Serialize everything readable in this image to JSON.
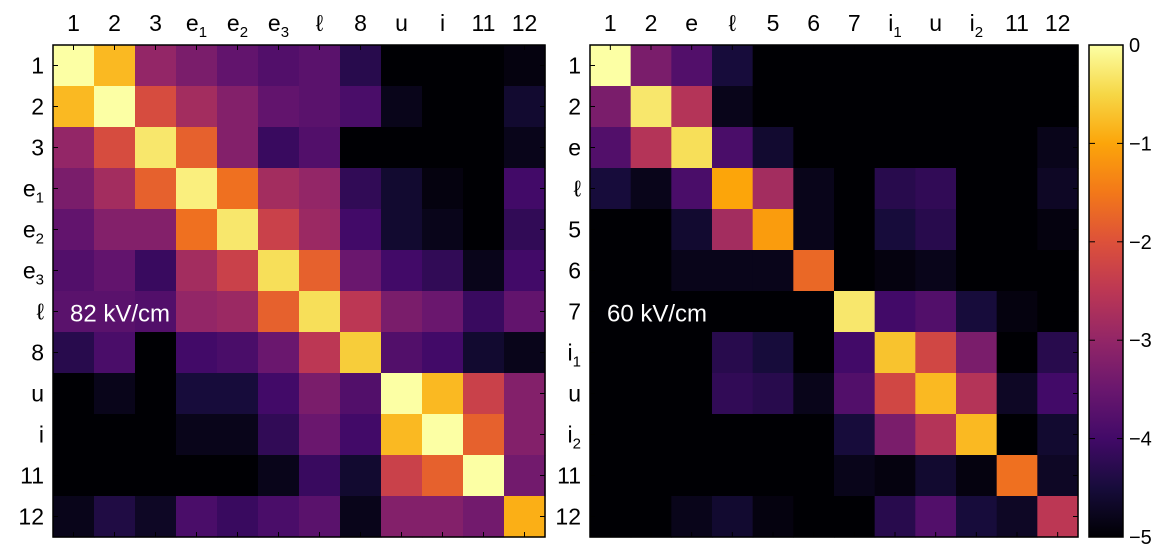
{
  "chart_data": [
    {
      "type": "heatmap",
      "annotation": "82 kV/cm",
      "labels": [
        {
          "base": "1",
          "sub": ""
        },
        {
          "base": "2",
          "sub": ""
        },
        {
          "base": "3",
          "sub": ""
        },
        {
          "base": "e",
          "sub": "1"
        },
        {
          "base": "e",
          "sub": "2"
        },
        {
          "base": "e",
          "sub": "3"
        },
        {
          "base": "ℓ",
          "sub": ""
        },
        {
          "base": "8",
          "sub": ""
        },
        {
          "base": "u",
          "sub": ""
        },
        {
          "base": "i",
          "sub": ""
        },
        {
          "base": "11",
          "sub": ""
        },
        {
          "base": "12",
          "sub": ""
        }
      ],
      "values": [
        [
          0.0,
          -0.8,
          -3.0,
          -3.3,
          -3.6,
          -3.8,
          -3.7,
          -4.3,
          -5.0,
          -5.0,
          -5.0,
          -4.9
        ],
        [
          -0.8,
          0.0,
          -2.1,
          -2.8,
          -3.2,
          -3.6,
          -3.7,
          -3.9,
          -4.8,
          -5.0,
          -5.0,
          -4.6
        ],
        [
          -3.0,
          -2.1,
          -0.3,
          -1.8,
          -3.2,
          -4.1,
          -3.8,
          -5.0,
          -5.0,
          -5.0,
          -5.0,
          -4.8
        ],
        [
          -3.3,
          -2.8,
          -1.8,
          -0.2,
          -1.6,
          -2.8,
          -3.0,
          -4.2,
          -4.6,
          -4.9,
          -5.0,
          -4.0
        ],
        [
          -3.6,
          -3.2,
          -3.2,
          -1.6,
          -0.3,
          -2.3,
          -2.9,
          -4.0,
          -4.6,
          -4.8,
          -5.0,
          -4.2
        ],
        [
          -3.8,
          -3.6,
          -4.1,
          -2.8,
          -2.3,
          -0.4,
          -1.8,
          -3.5,
          -4.0,
          -4.2,
          -4.8,
          -4.0
        ],
        [
          -3.7,
          -3.7,
          -3.8,
          -3.0,
          -2.9,
          -1.8,
          -0.4,
          -2.5,
          -3.3,
          -3.5,
          -4.1,
          -3.6
        ],
        [
          -4.3,
          -3.9,
          -5.0,
          -4.0,
          -3.9,
          -3.5,
          -2.5,
          -0.6,
          -3.8,
          -4.0,
          -4.6,
          -4.8
        ],
        [
          -5.0,
          -4.8,
          -5.0,
          -4.5,
          -4.5,
          -4.0,
          -3.3,
          -3.8,
          0.0,
          -0.8,
          -2.3,
          -3.2
        ],
        [
          -5.0,
          -5.0,
          -5.0,
          -4.8,
          -4.8,
          -4.2,
          -3.5,
          -4.0,
          -0.8,
          0.0,
          -1.8,
          -3.2
        ],
        [
          -5.0,
          -5.0,
          -5.0,
          -5.0,
          -5.0,
          -4.8,
          -4.1,
          -4.6,
          -2.3,
          -1.8,
          0.0,
          -3.4
        ],
        [
          -4.8,
          -4.4,
          -4.7,
          -3.9,
          -4.1,
          -3.9,
          -3.7,
          -4.8,
          -3.2,
          -3.2,
          -3.4,
          -0.9
        ]
      ]
    },
    {
      "type": "heatmap",
      "annotation": "60 kV/cm",
      "labels": [
        {
          "base": "1",
          "sub": ""
        },
        {
          "base": "2",
          "sub": ""
        },
        {
          "base": "e",
          "sub": ""
        },
        {
          "base": "ℓ",
          "sub": ""
        },
        {
          "base": "5",
          "sub": ""
        },
        {
          "base": "6",
          "sub": ""
        },
        {
          "base": "7",
          "sub": ""
        },
        {
          "base": "i",
          "sub": "1"
        },
        {
          "base": "u",
          "sub": ""
        },
        {
          "base": "i",
          "sub": "2"
        },
        {
          "base": "11",
          "sub": ""
        },
        {
          "base": "12",
          "sub": ""
        }
      ],
      "values": [
        [
          0.0,
          -3.3,
          -3.8,
          -4.5,
          -5.0,
          -5.0,
          -5.0,
          -5.0,
          -5.0,
          -5.0,
          -5.0,
          -5.0
        ],
        [
          -3.3,
          -0.3,
          -2.6,
          -4.8,
          -5.0,
          -5.0,
          -5.0,
          -5.0,
          -5.0,
          -5.0,
          -5.0,
          -5.0
        ],
        [
          -3.8,
          -2.6,
          -0.4,
          -3.9,
          -4.6,
          -5.0,
          -5.0,
          -5.0,
          -5.0,
          -5.0,
          -5.0,
          -4.8
        ],
        [
          -4.5,
          -4.8,
          -3.9,
          -1.0,
          -2.8,
          -4.8,
          -5.0,
          -4.3,
          -4.2,
          -5.0,
          -5.0,
          -4.7
        ],
        [
          -5.0,
          -5.0,
          -4.6,
          -2.8,
          -1.1,
          -4.8,
          -5.0,
          -4.5,
          -4.3,
          -5.0,
          -5.0,
          -4.9
        ],
        [
          -5.0,
          -5.0,
          -4.8,
          -4.8,
          -4.8,
          -1.7,
          -5.0,
          -4.9,
          -4.8,
          -5.0,
          -5.0,
          -5.0
        ],
        [
          -5.0,
          -5.0,
          -5.0,
          -5.0,
          -5.0,
          -5.0,
          -0.3,
          -4.0,
          -3.8,
          -4.5,
          -4.9,
          -5.0
        ],
        [
          -5.0,
          -5.0,
          -5.0,
          -4.3,
          -4.5,
          -5.0,
          -4.0,
          -0.7,
          -2.2,
          -3.3,
          -5.0,
          -4.3
        ],
        [
          -5.0,
          -5.0,
          -5.0,
          -4.2,
          -4.3,
          -4.8,
          -3.8,
          -2.2,
          -0.8,
          -2.6,
          -4.7,
          -4.0
        ],
        [
          -5.0,
          -5.0,
          -5.0,
          -5.0,
          -5.0,
          -5.0,
          -4.5,
          -3.3,
          -2.6,
          -0.8,
          -5.0,
          -4.6
        ],
        [
          -5.0,
          -5.0,
          -5.0,
          -5.0,
          -5.0,
          -5.0,
          -4.8,
          -4.9,
          -4.6,
          -4.9,
          -1.6,
          -4.7
        ],
        [
          -5.0,
          -5.0,
          -4.8,
          -4.6,
          -4.9,
          -5.0,
          -5.0,
          -4.3,
          -3.8,
          -4.5,
          -4.7,
          -2.5
        ]
      ]
    }
  ],
  "colorbar": {
    "colormap": "inferno",
    "min": -5,
    "max": 0,
    "ticks": [
      0,
      -1,
      -2,
      -3,
      -4,
      -5
    ],
    "tick_labels": [
      "0",
      "−1",
      "−2",
      "−3",
      "−4",
      "−5"
    ]
  }
}
